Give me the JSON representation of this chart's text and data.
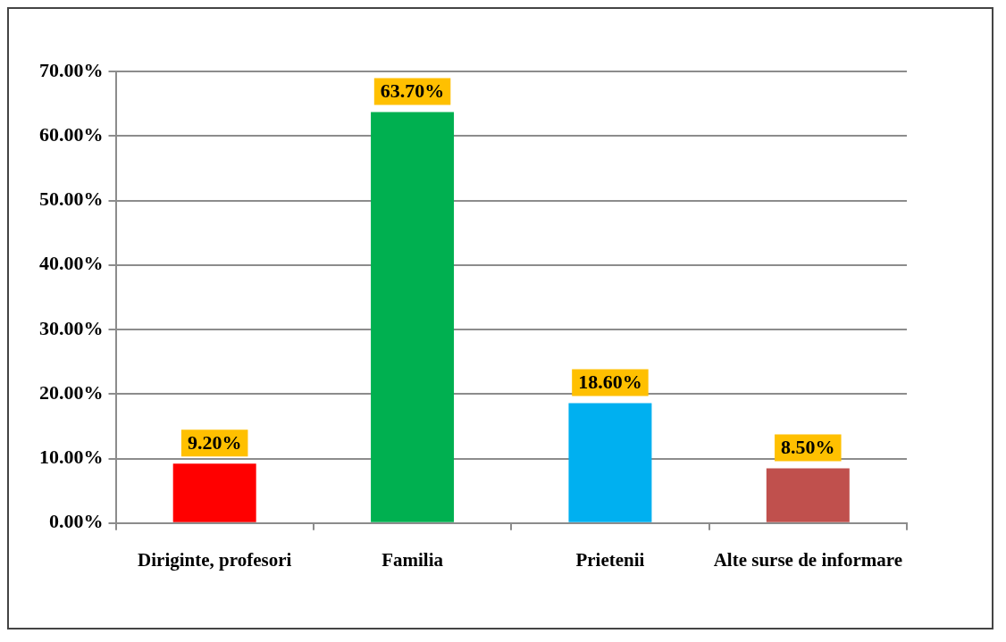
{
  "chart_data": {
    "type": "bar",
    "categories": [
      "Diriginte, profesori",
      "Familia",
      "Prietenii",
      "Alte surse de informare"
    ],
    "values": [
      9.2,
      63.7,
      18.6,
      8.5
    ],
    "colors": [
      "#ff0000",
      "#00b050",
      "#00b0f0",
      "#c0504d"
    ],
    "value_labels": [
      "9.20%",
      "63.70%",
      "18.60%",
      "8.50%"
    ],
    "ylim": [
      0,
      70
    ],
    "yticks": [
      {
        "value": 0,
        "label": "0.00%"
      },
      {
        "value": 10,
        "label": "10.00%"
      },
      {
        "value": 20,
        "label": "20.00%"
      },
      {
        "value": 30,
        "label": "30.00%"
      },
      {
        "value": 40,
        "label": "40.00%"
      },
      {
        "value": 50,
        "label": "50.00%"
      },
      {
        "value": 60,
        "label": "60.00%"
      },
      {
        "value": 70,
        "label": "70.00%"
      }
    ],
    "grid": "y"
  }
}
